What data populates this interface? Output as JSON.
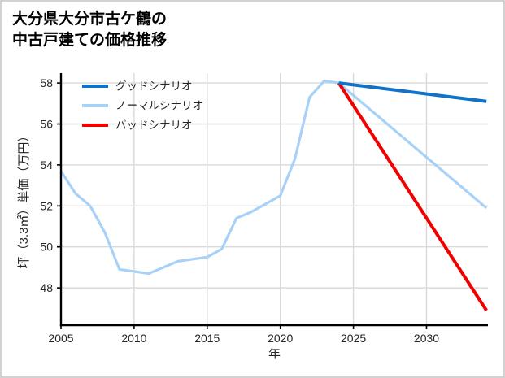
{
  "window": {
    "background": "#ffffff",
    "frame_border_color": "#d2d2d2"
  },
  "title": {
    "line1": "大分県大分市古ケ鶴の",
    "line2": "中古戸建ての価格推移"
  },
  "colors": {
    "good_scenario": "#1073c8",
    "normal_scenario": "#a8d1f7",
    "bad_scenario": "#f20000",
    "grid": "#d9d9d9",
    "spine": "#000000",
    "tick_text": "#262626"
  },
  "chart_data": {
    "type": "line",
    "title": "大分県大分市古ケ鶴の中古戸建ての価格推移",
    "xlabel": "年",
    "ylabel": "坪（3.3㎡）単価（万円）",
    "x_ticks": [
      2005,
      2010,
      2015,
      2020,
      2025,
      2030
    ],
    "y_ticks": [
      48,
      50,
      52,
      54,
      56,
      58
    ],
    "x_range": [
      2005,
      2034.2
    ],
    "y_range": [
      46.18,
      58.48
    ],
    "grid": true,
    "legend_position": "upper-left",
    "draw_order": [
      1,
      2,
      0
    ],
    "series": [
      {
        "name": "グッドシナリオ",
        "color": "#1073c8",
        "width": 4,
        "x": [
          2024,
          2034.1
        ],
        "y": [
          58.0,
          57.1
        ]
      },
      {
        "name": "ノーマルシナリオ",
        "color": "#a8d1f7",
        "width": 3.2,
        "x": [
          2005,
          2006,
          2007,
          2008,
          2009,
          2010,
          2011,
          2012,
          2013,
          2014,
          2015,
          2016,
          2017,
          2018,
          2019,
          2020,
          2021,
          2022,
          2023,
          2024,
          2034.1
        ],
        "y": [
          53.7,
          52.6,
          52.0,
          50.7,
          48.9,
          48.8,
          48.7,
          49.0,
          49.3,
          49.4,
          49.5,
          49.9,
          51.4,
          51.7,
          52.1,
          52.5,
          54.3,
          57.3,
          58.1,
          58.0,
          51.9
        ]
      },
      {
        "name": "バッドシナリオ",
        "color": "#f20000",
        "width": 4,
        "x": [
          2024,
          2034.1
        ],
        "y": [
          58.0,
          46.9
        ]
      }
    ]
  }
}
